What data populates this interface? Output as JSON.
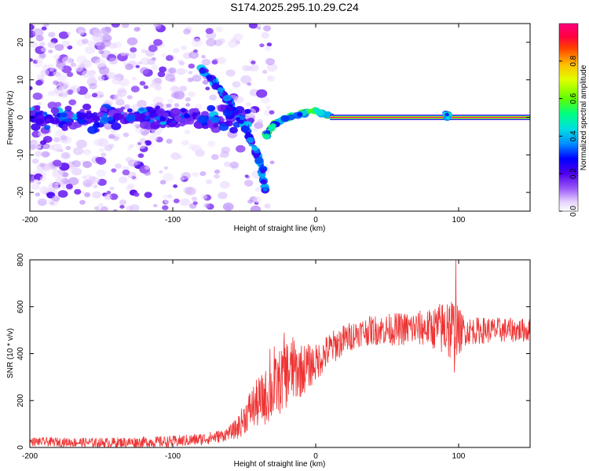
{
  "page": {
    "title": "S174.2025.295.10.29.C24"
  },
  "chart_data": [
    {
      "type": "heatmap",
      "title": "S174.2025.295.10.29.C24",
      "xlabel": "Height of straight line (km)",
      "ylabel": "Frequency (Hz)",
      "xlim": [
        -200,
        150
      ],
      "ylim": [
        -25,
        25
      ],
      "xticks": [
        -200,
        -100,
        0,
        100
      ],
      "yticks": [
        -20,
        -10,
        0,
        10,
        20
      ],
      "colorbar": {
        "label": "Normalized spectral amplitude",
        "range": [
          0,
          1
        ],
        "ticks": [
          "0.0",
          "0.2",
          "0.4",
          "0.6",
          "0.8"
        ]
      },
      "features": {
        "noise_region_x": [
          -200,
          -30
        ],
        "carrier_line": {
          "x": [
            10,
            150
          ],
          "frequency": 0,
          "amplitude": 0.85
        },
        "descending_trace": [
          [
            -80,
            13
          ],
          [
            -70,
            9
          ],
          [
            -60,
            4
          ],
          [
            -50,
            -2
          ],
          [
            -43,
            -8
          ],
          [
            -38,
            -13
          ],
          [
            -35,
            -20
          ]
        ],
        "rising_trace": [
          [
            -35,
            -5
          ],
          [
            -30,
            -2
          ],
          [
            -20,
            0
          ],
          [
            -10,
            1
          ],
          [
            0,
            2
          ],
          [
            5,
            1
          ],
          [
            10,
            0.5
          ]
        ],
        "low_band": {
          "x": [
            -200,
            -45
          ],
          "frequency_center": 0,
          "spread": 5
        },
        "spike": {
          "x": 92,
          "frequency": 0.5
        }
      }
    },
    {
      "type": "line",
      "xlabel": "Height of straight line (km)",
      "ylabel": "SNR (10 * v/v)",
      "xlim": [
        -200,
        150
      ],
      "ylim": [
        0,
        800
      ],
      "xticks": [
        -200,
        -100,
        0,
        100
      ],
      "yticks": [
        0,
        200,
        400,
        600,
        800
      ],
      "color": "#ee3333",
      "profile": [
        [
          -200,
          25
        ],
        [
          -150,
          20
        ],
        [
          -100,
          25
        ],
        [
          -80,
          35
        ],
        [
          -65,
          50
        ],
        [
          -55,
          80
        ],
        [
          -45,
          170
        ],
        [
          -38,
          200
        ],
        [
          -30,
          240
        ],
        [
          -20,
          320
        ],
        [
          -10,
          330
        ],
        [
          0,
          360
        ],
        [
          10,
          420
        ],
        [
          20,
          460
        ],
        [
          30,
          490
        ],
        [
          40,
          500
        ],
        [
          60,
          505
        ],
        [
          80,
          510
        ],
        [
          95,
          505
        ],
        [
          100,
          495
        ],
        [
          120,
          500
        ],
        [
          150,
          500
        ]
      ],
      "noise": [
        [
          -200,
          18
        ],
        [
          -60,
          28
        ],
        [
          -40,
          110
        ],
        [
          -20,
          150
        ],
        [
          0,
          80
        ],
        [
          30,
          60
        ],
        [
          80,
          80
        ],
        [
          95,
          150
        ],
        [
          105,
          60
        ],
        [
          150,
          50
        ]
      ],
      "spikes": [
        [
          -32,
          420
        ],
        [
          -29,
          430
        ],
        [
          -22,
          490
        ],
        [
          -16,
          470
        ],
        [
          98,
          800
        ],
        [
          92,
          610
        ],
        [
          97,
          320
        ]
      ]
    }
  ]
}
